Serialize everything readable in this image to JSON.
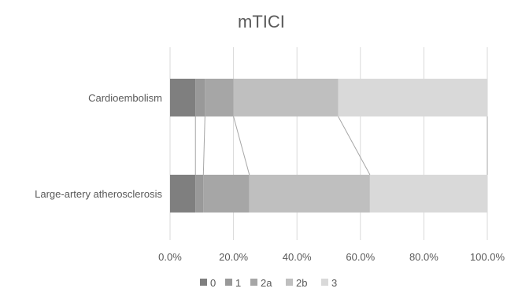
{
  "chart_data": {
    "type": "bar",
    "orientation": "horizontal",
    "stacked": "percent",
    "title": "mTICI",
    "categories": [
      "Cardioembolism",
      "Large-artery atherosclerosis"
    ],
    "series": [
      {
        "name": "0",
        "color": "#7f7f7f",
        "values": [
          0.08,
          0.08
        ]
      },
      {
        "name": "1",
        "color": "#999999",
        "values": [
          0.03,
          0.025
        ]
      },
      {
        "name": "2a",
        "color": "#a6a6a6",
        "values": [
          0.09,
          0.145
        ]
      },
      {
        "name": "2b",
        "color": "#bfbfbf",
        "values": [
          0.33,
          0.38
        ]
      },
      {
        "name": "3",
        "color": "#d9d9d9",
        "values": [
          0.47,
          0.37
        ]
      }
    ],
    "xlim": [
      0,
      1
    ],
    "xticks": [
      "0.0%",
      "20.0%",
      "40.0%",
      "60.0%",
      "80.0%",
      "100.0%"
    ],
    "series_lines": true,
    "grid": true,
    "legend_position": "bottom"
  }
}
